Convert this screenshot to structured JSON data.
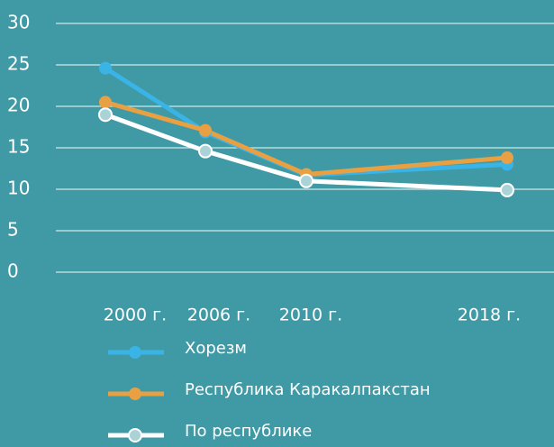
{
  "chart_data": {
    "type": "line",
    "categories": [
      "2000 г.",
      "2006 г.",
      "2010 г.",
      "2018 г."
    ],
    "series": [
      {
        "name": "Хорезм",
        "color": "#3ab4e6",
        "values": [
          24.6,
          16.9,
          11.7,
          13.0
        ]
      },
      {
        "name": "Республика Каракалпакстан",
        "color": "#e9a043",
        "values": [
          20.5,
          17.1,
          11.8,
          13.8
        ]
      },
      {
        "name": "По республике",
        "color": "#ffffff",
        "marker_fill": "#a9d3d6",
        "values": [
          19.0,
          14.6,
          11.0,
          9.9
        ]
      }
    ],
    "ylim": [
      0,
      30
    ],
    "yticks": [
      0,
      5,
      10,
      15,
      20,
      25,
      30
    ],
    "grid": true,
    "legend": "bottom"
  }
}
